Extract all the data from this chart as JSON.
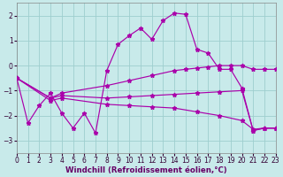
{
  "xlabel": "Windchill (Refroidissement éolien,°C)",
  "bg_color": "#c8eaea",
  "line_color": "#aa00aa",
  "grid_color": "#9dcece",
  "xlim": [
    0,
    23
  ],
  "ylim": [
    -3.5,
    2.5
  ],
  "yticks": [
    -3,
    -2,
    -1,
    0,
    1,
    2
  ],
  "xticks": [
    0,
    1,
    2,
    3,
    4,
    5,
    6,
    7,
    8,
    9,
    10,
    11,
    12,
    13,
    14,
    15,
    16,
    17,
    18,
    19,
    20,
    21,
    22,
    23
  ],
  "series": [
    {
      "x": [
        0,
        1,
        2,
        3,
        4,
        5,
        6,
        7,
        8,
        9,
        10,
        11,
        12,
        13,
        14,
        15,
        16,
        17,
        18,
        19,
        20,
        21,
        22,
        23
      ],
      "y": [
        -0.5,
        -2.3,
        -1.6,
        -1.1,
        -1.9,
        -2.5,
        -1.9,
        -2.7,
        -0.2,
        0.85,
        1.2,
        1.5,
        1.05,
        1.8,
        2.1,
        2.05,
        0.65,
        0.5,
        -0.15,
        -0.15,
        -0.9,
        -2.6,
        -2.5,
        -2.5
      ]
    },
    {
      "x": [
        0,
        3,
        4,
        8,
        10,
        12,
        14,
        15,
        16,
        17,
        18,
        19,
        20,
        21,
        22,
        23
      ],
      "y": [
        -0.5,
        -1.3,
        -1.1,
        -0.8,
        -0.6,
        -0.4,
        -0.2,
        -0.15,
        -0.1,
        -0.05,
        0.0,
        0.0,
        0.0,
        -0.15,
        -0.15,
        -0.15
      ]
    },
    {
      "x": [
        0,
        3,
        4,
        8,
        10,
        12,
        14,
        16,
        18,
        20,
        21,
        22,
        23
      ],
      "y": [
        -0.5,
        -1.3,
        -1.2,
        -1.3,
        -1.25,
        -1.2,
        -1.15,
        -1.1,
        -1.05,
        -1.0,
        -2.6,
        -2.5,
        -2.5
      ]
    },
    {
      "x": [
        0,
        3,
        4,
        8,
        10,
        12,
        14,
        16,
        18,
        20,
        21,
        22,
        23
      ],
      "y": [
        -0.5,
        -1.4,
        -1.3,
        -1.55,
        -1.6,
        -1.65,
        -1.7,
        -1.85,
        -2.0,
        -2.2,
        -2.55,
        -2.5,
        -2.5
      ]
    }
  ]
}
